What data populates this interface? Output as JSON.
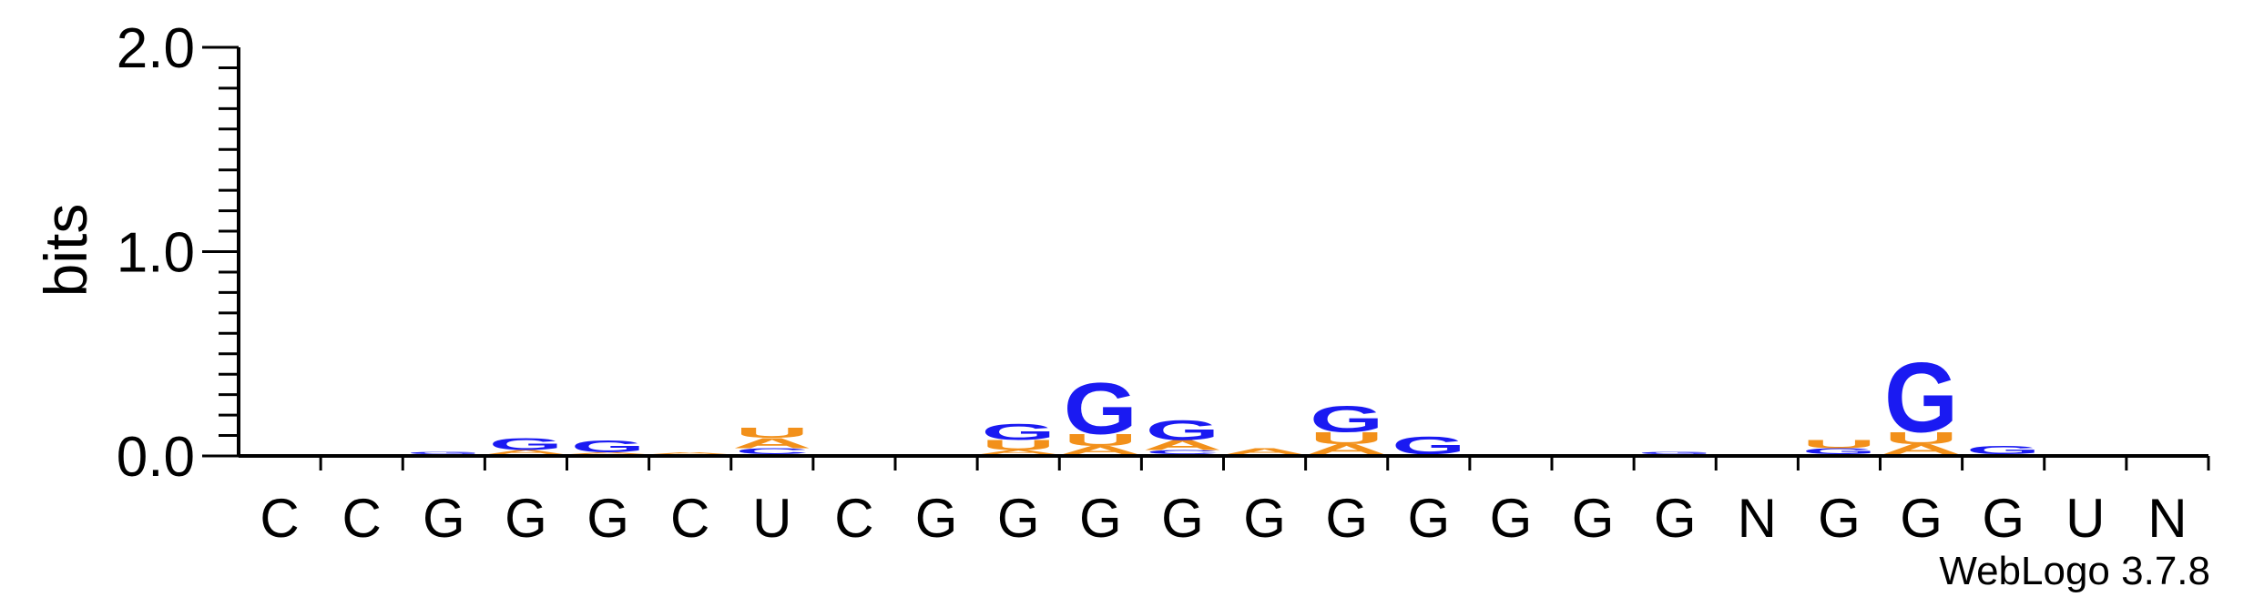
{
  "chart_data": {
    "type": "sequence_logo",
    "ylabel": "bits",
    "ylim": [
      0,
      2.0
    ],
    "yticks": [
      "0.0",
      "1.0",
      "2.0"
    ],
    "colors": {
      "G": "#1a1af2",
      "U": "#f2901a",
      "A": "#f2901a",
      "C": "#1a1af2"
    },
    "positions": [
      {
        "label": "C",
        "stack": []
      },
      {
        "label": "C",
        "stack": []
      },
      {
        "label": "G",
        "stack": [
          {
            "letter": "G",
            "bits": 0.01
          }
        ]
      },
      {
        "label": "G",
        "stack": [
          {
            "letter": "A",
            "bits": 0.02
          },
          {
            "letter": "G",
            "bits": 0.06
          }
        ]
      },
      {
        "label": "G",
        "stack": [
          {
            "letter": "A",
            "bits": 0.01
          },
          {
            "letter": "G",
            "bits": 0.06
          }
        ]
      },
      {
        "label": "C",
        "stack": [
          {
            "letter": "A",
            "bits": 0.01
          }
        ]
      },
      {
        "label": "U",
        "stack": [
          {
            "letter": "C",
            "bits": 0.03
          },
          {
            "letter": "A",
            "bits": 0.05
          },
          {
            "letter": "U",
            "bits": 0.05
          }
        ]
      },
      {
        "label": "C",
        "stack": []
      },
      {
        "label": "G",
        "stack": []
      },
      {
        "label": "G",
        "stack": [
          {
            "letter": "A",
            "bits": 0.02
          },
          {
            "letter": "U",
            "bits": 0.05
          },
          {
            "letter": "G",
            "bits": 0.08
          }
        ]
      },
      {
        "label": "G",
        "stack": [
          {
            "letter": "A",
            "bits": 0.04
          },
          {
            "letter": "U",
            "bits": 0.06
          },
          {
            "letter": "G",
            "bits": 0.26
          }
        ]
      },
      {
        "label": "G",
        "stack": [
          {
            "letter": "C",
            "bits": 0.02
          },
          {
            "letter": "A",
            "bits": 0.05
          },
          {
            "letter": "G",
            "bits": 0.1
          }
        ]
      },
      {
        "label": "G",
        "stack": [
          {
            "letter": "A",
            "bits": 0.03
          }
        ]
      },
      {
        "label": "G",
        "stack": [
          {
            "letter": "A",
            "bits": 0.05
          },
          {
            "letter": "U",
            "bits": 0.06
          },
          {
            "letter": "G",
            "bits": 0.13
          }
        ]
      },
      {
        "label": "G",
        "stack": [
          {
            "letter": "G",
            "bits": 0.09
          }
        ]
      },
      {
        "label": "G",
        "stack": []
      },
      {
        "label": "G",
        "stack": []
      },
      {
        "label": "G",
        "stack": [
          {
            "letter": "G",
            "bits": 0.01
          }
        ]
      },
      {
        "label": "N",
        "stack": []
      },
      {
        "label": "G",
        "stack": [
          {
            "letter": "G",
            "bits": 0.03
          },
          {
            "letter": "U",
            "bits": 0.04
          }
        ]
      },
      {
        "label": "G",
        "stack": [
          {
            "letter": "A",
            "bits": 0.05
          },
          {
            "letter": "U",
            "bits": 0.06
          },
          {
            "letter": "G",
            "bits": 0.35
          }
        ]
      },
      {
        "label": "G",
        "stack": [
          {
            "letter": "G",
            "bits": 0.04
          }
        ]
      },
      {
        "label": "U",
        "stack": []
      },
      {
        "label": "N",
        "stack": []
      }
    ]
  },
  "footer": {
    "credit": "WebLogo 3.7.8"
  }
}
